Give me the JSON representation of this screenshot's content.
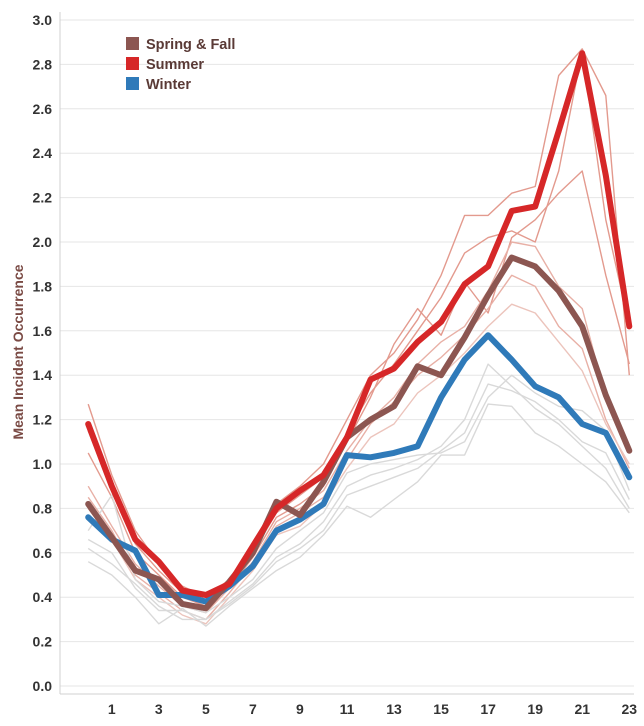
{
  "chart_data": {
    "type": "line",
    "title": "",
    "xlabel": "",
    "ylabel": "Mean Incident Occurrence",
    "x": [
      0,
      1,
      2,
      3,
      4,
      5,
      6,
      7,
      8,
      9,
      10,
      11,
      12,
      13,
      14,
      15,
      16,
      17,
      18,
      19,
      20,
      21,
      22,
      23
    ],
    "x_tick_labels": [
      "1",
      "3",
      "5",
      "7",
      "9",
      "11",
      "13",
      "15",
      "17",
      "19",
      "21",
      "23"
    ],
    "x_tick_values": [
      1,
      3,
      5,
      7,
      9,
      11,
      13,
      15,
      17,
      19,
      21,
      23
    ],
    "y_tick_labels": [
      "0.0",
      "0.2",
      "0.4",
      "0.6",
      "0.8",
      "1.0",
      "1.2",
      "1.4",
      "1.6",
      "1.8",
      "2.0",
      "2.2",
      "2.4",
      "2.6",
      "2.8",
      "3.0"
    ],
    "y_tick_values": [
      0.0,
      0.2,
      0.4,
      0.6,
      0.8,
      1.0,
      1.2,
      1.4,
      1.6,
      1.8,
      2.0,
      2.2,
      2.4,
      2.6,
      2.8,
      3.0
    ],
    "xlim": [
      -1.2,
      23.2
    ],
    "ylim": [
      0,
      3.0
    ],
    "grid": true,
    "legend_position": "top-left",
    "series": [
      {
        "name": "Spring & Fall",
        "color": "#8c5651",
        "width": 6,
        "values": [
          0.82,
          0.67,
          0.52,
          0.48,
          0.37,
          0.35,
          0.47,
          0.6,
          0.83,
          0.77,
          0.92,
          1.12,
          1.2,
          1.26,
          1.44,
          1.4,
          1.57,
          1.76,
          1.93,
          1.89,
          1.78,
          1.62,
          1.31,
          1.06
        ]
      },
      {
        "name": "Summer",
        "color": "#d62728",
        "width": 6,
        "values": [
          1.18,
          0.9,
          0.66,
          0.56,
          0.43,
          0.41,
          0.46,
          0.63,
          0.8,
          0.88,
          0.95,
          1.12,
          1.38,
          1.43,
          1.55,
          1.64,
          1.81,
          1.89,
          2.14,
          2.16,
          2.5,
          2.85,
          2.3,
          1.62
        ]
      },
      {
        "name": "Winter",
        "color": "#2f7ab9",
        "width": 6,
        "values": [
          0.76,
          0.66,
          0.61,
          0.41,
          0.41,
          0.38,
          0.45,
          0.54,
          0.7,
          0.75,
          0.82,
          1.04,
          1.03,
          1.05,
          1.08,
          1.3,
          1.47,
          1.58,
          1.47,
          1.35,
          1.3,
          1.18,
          1.14,
          0.94
        ]
      }
    ],
    "background_series": [
      {
        "color": "#e39a8e",
        "values": [
          1.27,
          0.95,
          0.7,
          0.55,
          0.45,
          0.4,
          0.48,
          0.62,
          0.82,
          0.9,
          1.0,
          1.2,
          1.4,
          1.5,
          1.65,
          1.85,
          2.12,
          2.12,
          2.22,
          2.25,
          2.75,
          2.87,
          2.66,
          1.4
        ]
      },
      {
        "color": "#e39a8e",
        "values": [
          1.15,
          0.88,
          0.64,
          0.52,
          0.42,
          0.39,
          0.46,
          0.6,
          0.78,
          0.86,
          0.94,
          1.14,
          1.32,
          1.45,
          1.6,
          1.75,
          1.95,
          2.02,
          2.05,
          2.0,
          2.32,
          2.86,
          2.1,
          1.62
        ]
      },
      {
        "color": "#e39a8e",
        "values": [
          1.05,
          0.85,
          0.6,
          0.5,
          0.4,
          0.36,
          0.44,
          0.58,
          0.76,
          0.82,
          0.9,
          1.1,
          1.3,
          1.54,
          1.7,
          1.58,
          1.82,
          1.68,
          2.02,
          2.1,
          2.22,
          2.32,
          1.85,
          1.45
        ]
      },
      {
        "color": "#e8b0a6",
        "values": [
          0.9,
          0.72,
          0.55,
          0.45,
          0.36,
          0.33,
          0.44,
          0.56,
          0.74,
          0.8,
          0.88,
          1.06,
          1.2,
          1.3,
          1.45,
          1.55,
          1.62,
          1.78,
          2.0,
          1.98,
          1.8,
          1.7,
          1.3,
          1.05
        ]
      },
      {
        "color": "#e8b0a6",
        "values": [
          0.85,
          0.7,
          0.5,
          0.42,
          0.34,
          0.3,
          0.42,
          0.55,
          0.72,
          0.78,
          0.85,
          1.02,
          1.18,
          1.28,
          1.4,
          1.48,
          1.58,
          1.7,
          1.85,
          1.8,
          1.62,
          1.52,
          1.2,
          0.98
        ]
      },
      {
        "color": "#ecc4bc",
        "values": [
          0.8,
          0.66,
          0.48,
          0.4,
          0.32,
          0.28,
          0.4,
          0.52,
          0.68,
          0.72,
          0.82,
          0.98,
          1.12,
          1.18,
          1.32,
          1.4,
          1.5,
          1.62,
          1.72,
          1.68,
          1.55,
          1.42,
          1.18,
          1.0
        ]
      },
      {
        "color": "#d9d9d9",
        "values": [
          0.7,
          0.86,
          0.48,
          0.38,
          0.36,
          0.33,
          0.4,
          0.48,
          0.62,
          0.7,
          0.78,
          0.96,
          1.0,
          1.02,
          1.04,
          1.05,
          1.1,
          1.3,
          1.4,
          1.32,
          1.26,
          1.24,
          1.15,
          0.88
        ]
      },
      {
        "color": "#d9d9d9",
        "values": [
          0.66,
          0.6,
          0.44,
          0.34,
          0.34,
          0.3,
          0.38,
          0.46,
          0.58,
          0.64,
          0.74,
          0.9,
          0.95,
          0.98,
          1.02,
          1.08,
          1.2,
          1.45,
          1.35,
          1.25,
          1.18,
          1.08,
          0.98,
          0.8
        ]
      },
      {
        "color": "#d9d9d9",
        "values": [
          0.56,
          0.5,
          0.4,
          0.28,
          0.35,
          0.27,
          0.36,
          0.44,
          0.52,
          0.58,
          0.68,
          0.81,
          0.76,
          0.84,
          0.92,
          1.04,
          1.04,
          1.27,
          1.26,
          1.14,
          1.08,
          1.0,
          0.92,
          0.78
        ]
      },
      {
        "color": "#d9d9d9",
        "values": [
          0.62,
          0.55,
          0.46,
          0.36,
          0.3,
          0.3,
          0.37,
          0.45,
          0.56,
          0.62,
          0.7,
          0.86,
          0.9,
          0.94,
          0.98,
          1.06,
          1.14,
          1.36,
          1.33,
          1.28,
          1.2,
          1.1,
          1.05,
          0.84
        ]
      }
    ]
  }
}
